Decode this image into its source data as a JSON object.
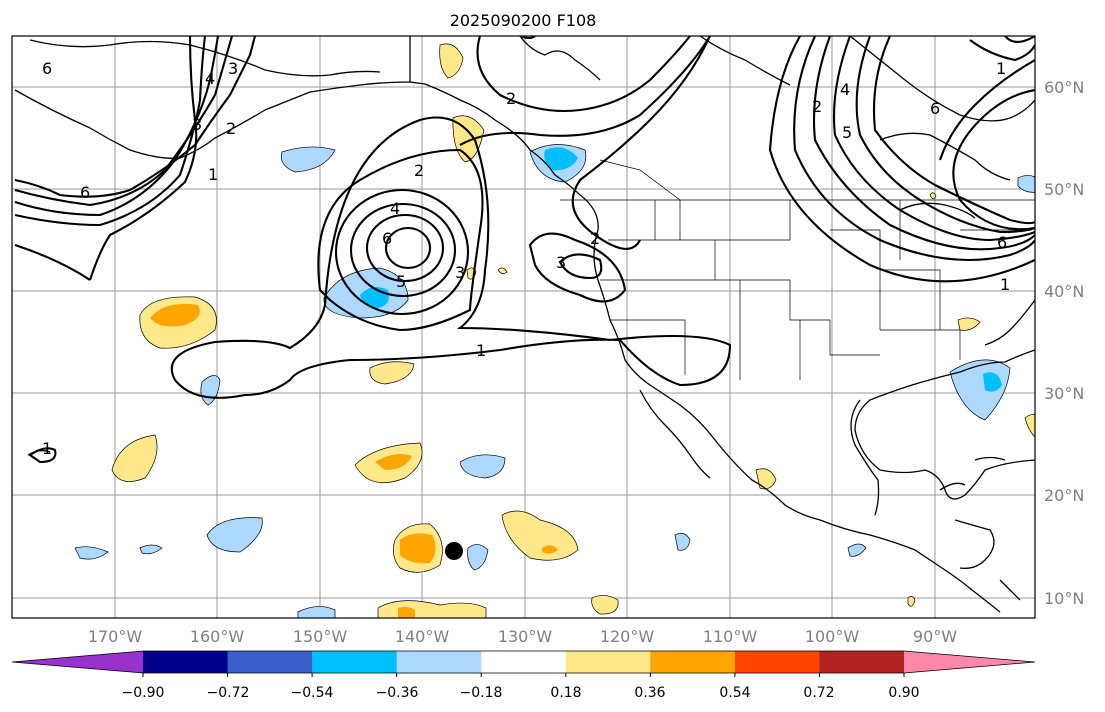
{
  "title": "2025090200 F108",
  "lat_labels": [
    "60°N",
    "50°N",
    "40°N",
    "30°N",
    "20°N",
    "10°N"
  ],
  "lon_labels": [
    "170°W",
    "160°W",
    "150°W",
    "140°W",
    "130°W",
    "120°W",
    "110°W",
    "100°W",
    "90°W"
  ],
  "colorbar": {
    "tick_labels": [
      "−0.90",
      "−0.72",
      "−0.54",
      "−0.36",
      "−0.18",
      "0.18",
      "0.36",
      "0.54",
      "0.72",
      "0.90"
    ],
    "colors": [
      "#9932cc",
      "#00008b",
      "#3a5fcd",
      "#00bfff",
      "#add8ff",
      "#ffffff",
      "#ffe88a",
      "#ffa500",
      "#ff4500",
      "#b22222",
      "#ff88aa"
    ]
  },
  "contour_labels": [
    "6",
    "3",
    "4",
    "6",
    "2",
    "3",
    "1",
    "2",
    "4",
    "6",
    "5",
    "3",
    "1",
    "3",
    "2",
    "2",
    "6",
    "5",
    "4",
    "2",
    "6",
    "1",
    "1",
    "1"
  ]
}
